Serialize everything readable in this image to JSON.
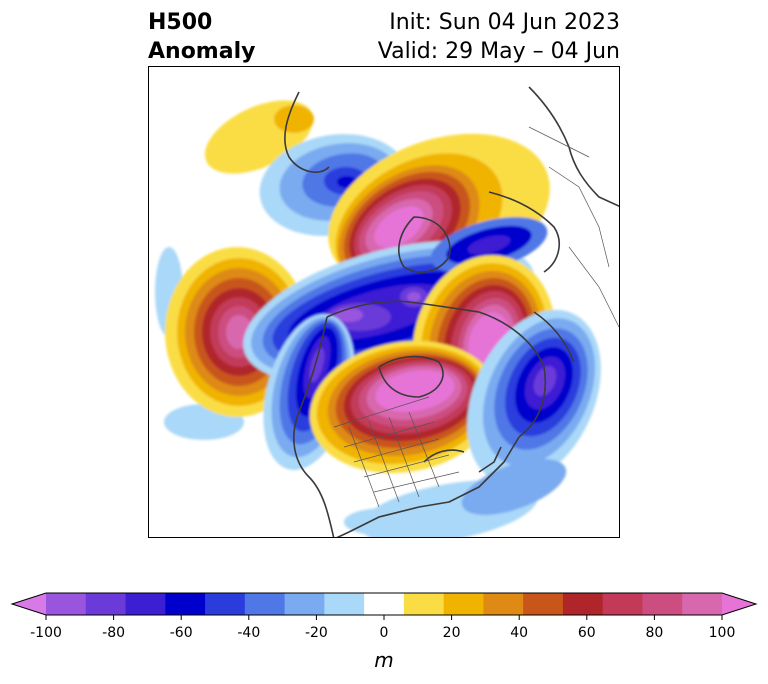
{
  "title": {
    "left_line1": "H500",
    "left_line2": "Anomaly",
    "right_line1": "Init: Sun 04 Jun 2023",
    "right_line2": "Valid: 29 May – 04 Jun"
  },
  "map": {
    "projection": "north polar stereographic",
    "field": "500 hPa geopotential height anomaly"
  },
  "colorbar": {
    "units": "m",
    "range": [
      -100,
      100
    ],
    "ticks": [
      "-100",
      "-80",
      "-60",
      "-40",
      "-20",
      "0",
      "20",
      "40",
      "60",
      "80",
      "100"
    ],
    "extend": "both",
    "colors": [
      "#d77ae6",
      "#9a55de",
      "#6b3bd9",
      "#3d1fd3",
      "#0000cc",
      "#2b3cdd",
      "#4f77e6",
      "#7aaaf0",
      "#aad8f8",
      "#ffffff",
      "#fadd45",
      "#f0b400",
      "#de8a14",
      "#c8561a",
      "#b0252a",
      "#c23a58",
      "#cc4e80",
      "#d868ad",
      "#e673d6"
    ]
  }
}
